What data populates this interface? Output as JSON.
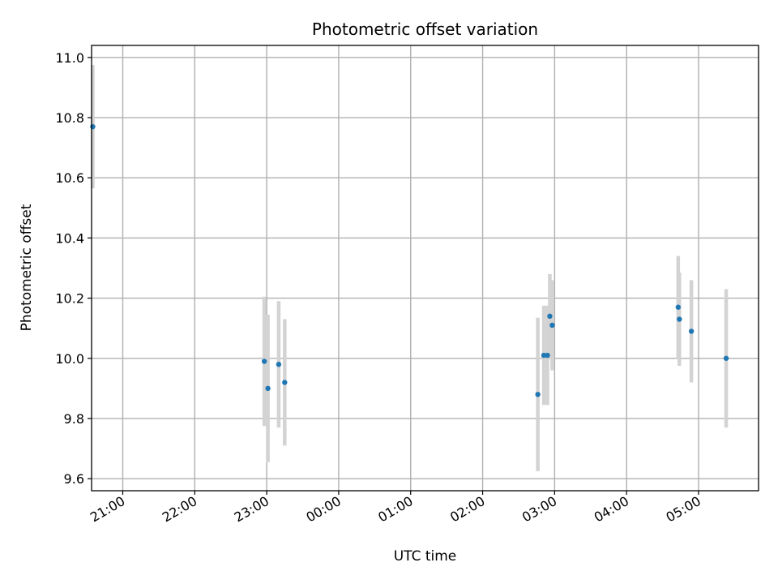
{
  "chart_data": {
    "type": "scatter",
    "title": "Photometric offset variation",
    "xlabel": "UTC time",
    "ylabel": "Photometric offset",
    "xlim": [
      "20:34",
      "05:50"
    ],
    "ylim": [
      9.56,
      11.04
    ],
    "x_ticks": [
      "21:00",
      "22:00",
      "23:00",
      "00:00",
      "01:00",
      "02:00",
      "03:00",
      "04:00",
      "05:00"
    ],
    "y_ticks": [
      "9.6",
      "9.8",
      "10.0",
      "10.2",
      "10.4",
      "10.6",
      "10.8",
      "11.0"
    ],
    "grid": true,
    "series": [
      {
        "points": [
          {
            "time": "20:35",
            "y": 10.77,
            "err": 0.205
          },
          {
            "time": "22:58",
            "y": 9.99,
            "err": 0.215
          },
          {
            "time": "23:01",
            "y": 9.9,
            "err": 0.245
          },
          {
            "time": "23:10",
            "y": 9.98,
            "err": 0.21
          },
          {
            "time": "23:15",
            "y": 9.92,
            "err": 0.21
          },
          {
            "time": "02:46",
            "y": 9.88,
            "err": 0.255
          },
          {
            "time": "02:51",
            "y": 10.01,
            "err": 0.165
          },
          {
            "time": "02:54",
            "y": 10.01,
            "err": 0.165
          },
          {
            "time": "02:56",
            "y": 10.14,
            "err": 0.14
          },
          {
            "time": "02:58",
            "y": 10.11,
            "err": 0.15
          },
          {
            "time": "04:43",
            "y": 10.17,
            "err": 0.17
          },
          {
            "time": "04:44",
            "y": 10.13,
            "err": 0.155
          },
          {
            "time": "04:54",
            "y": 10.09,
            "err": 0.17
          },
          {
            "time": "05:23",
            "y": 10.0,
            "err": 0.23
          }
        ]
      }
    ]
  }
}
